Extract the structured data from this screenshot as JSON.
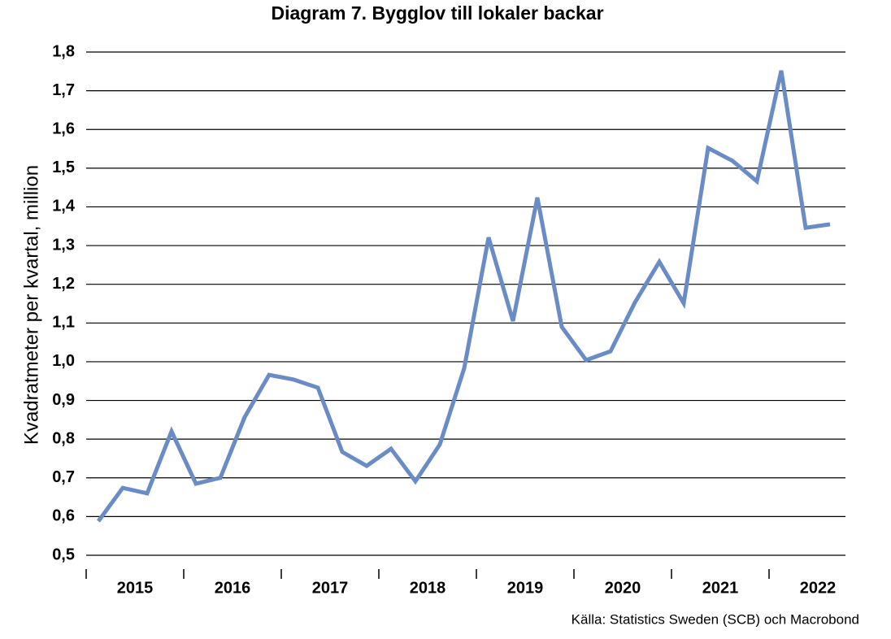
{
  "chart_data": {
    "type": "line",
    "title": "Diagram 7. Bygglov till lokaler backar",
    "y_label": "Kvadratmeter per kvartal, million",
    "source": "Källa: Statistics Sweden (SCB) och Macrobond",
    "categories": [
      "2015",
      null,
      null,
      null,
      "2016",
      null,
      null,
      null,
      "2017",
      null,
      null,
      null,
      "2018",
      null,
      null,
      null,
      "2019",
      null,
      null,
      null,
      "2020",
      null,
      null,
      null,
      "2021",
      null,
      null,
      null,
      "2022",
      null,
      null
    ],
    "series": [
      {
        "name": "Bygglov till lokaler",
        "color": "#6a8cc6",
        "values": [
          0.588,
          0.674,
          0.66,
          0.82,
          0.685,
          0.7,
          0.857,
          0.966,
          0.954,
          0.933,
          0.767,
          0.731,
          0.775,
          0.691,
          0.786,
          0.983,
          1.321,
          1.105,
          1.424,
          1.09,
          1.004,
          1.027,
          1.153,
          1.258,
          1.151,
          1.552,
          1.519,
          1.466,
          1.752,
          1.346,
          1.355
        ]
      }
    ],
    "ylim": [
      0.5,
      1.8
    ],
    "yticks": [
      {
        "value": 0.5,
        "label": "0,5"
      },
      {
        "value": 0.6,
        "label": "0,6"
      },
      {
        "value": 0.7,
        "label": "0,7"
      },
      {
        "value": 0.8,
        "label": "0,8"
      },
      {
        "value": 0.9,
        "label": "0,9"
      },
      {
        "value": 1.0,
        "label": "1,0"
      },
      {
        "value": 1.1,
        "label": "1,1"
      },
      {
        "value": 1.2,
        "label": "1,2"
      },
      {
        "value": 1.3,
        "label": "1,3"
      },
      {
        "value": 1.4,
        "label": "1,4"
      },
      {
        "value": 1.5,
        "label": "1,5"
      },
      {
        "value": 1.6,
        "label": "1,6"
      },
      {
        "value": 1.7,
        "label": "1,7"
      },
      {
        "value": 1.8,
        "label": "1,8"
      }
    ],
    "grid": true
  }
}
